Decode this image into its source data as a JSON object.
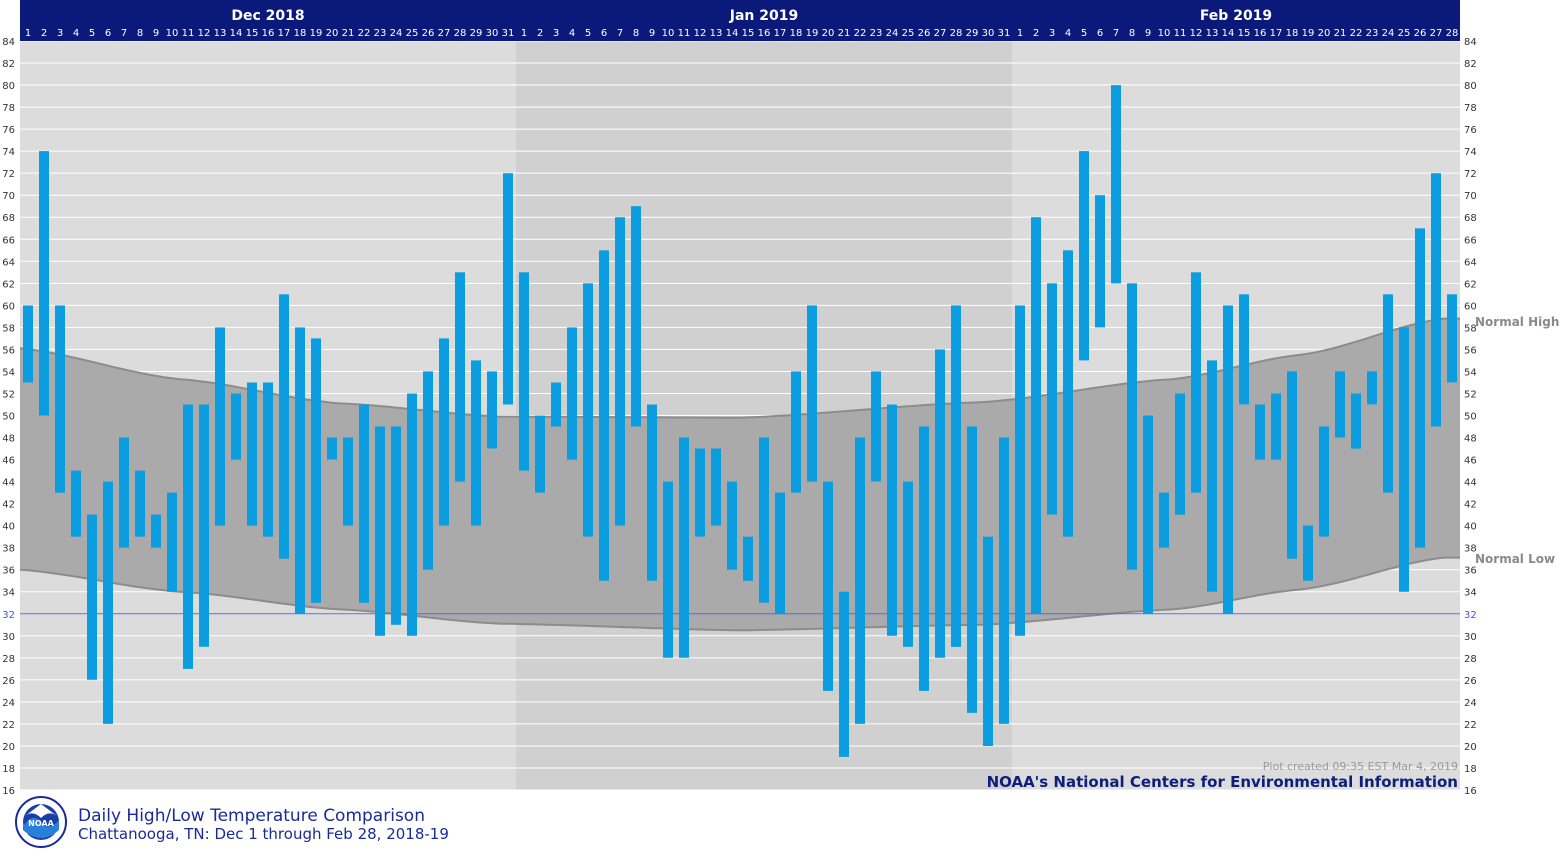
{
  "title": "Daily High/Low Temperature Comparison",
  "subtitle": "Chattanooga, TN: Dec 1 through Feb 28, 2018-19",
  "credit": "NOAA's National Centers for Environmental Information",
  "plot_created": "Plot created 09:35 EST Mar 4, 2019",
  "logo_text": "NOAA",
  "normal_high_label": "Normal High",
  "normal_low_label": "Normal Low",
  "colors": {
    "bar": "#0a9ee0",
    "normal_band": "#aaaaaa",
    "normal_edge": "#8c8c8c",
    "background_light": "#dcdcdc",
    "background_shade": "#d0d0d0",
    "header": "#0b1a7a",
    "freeze_line": "#5566ee"
  },
  "chart_data": {
    "type": "bar",
    "y_axis": {
      "min": 16,
      "max": 84,
      "step": 2
    },
    "freeze_line": 32,
    "grid": true,
    "months": [
      {
        "label": "Dec 2018",
        "days": 31
      },
      {
        "label": "Jan 2019",
        "days": 31
      },
      {
        "label": "Feb 2019",
        "days": 28
      }
    ],
    "highs": [
      60,
      74,
      60,
      45,
      41,
      44,
      48,
      45,
      41,
      43,
      51,
      51,
      58,
      52,
      53,
      53,
      61,
      58,
      57,
      48,
      48,
      51,
      49,
      49,
      52,
      54,
      57,
      63,
      55,
      54,
      72,
      63,
      50,
      53,
      58,
      62,
      65,
      68,
      69,
      51,
      44,
      48,
      47,
      47,
      44,
      39,
      48,
      43,
      54,
      60,
      44,
      34,
      48,
      54,
      51,
      44,
      49,
      56,
      60,
      49,
      39,
      48,
      60,
      68,
      62,
      65,
      74,
      70,
      80,
      62,
      50,
      43,
      52,
      63,
      55,
      60,
      61,
      51,
      52,
      54,
      40,
      49,
      54,
      52,
      54,
      61,
      58,
      67,
      72,
      61
    ],
    "lows": [
      53,
      50,
      43,
      39,
      26,
      22,
      38,
      39,
      38,
      34,
      27,
      29,
      40,
      46,
      40,
      39,
      37,
      32,
      33,
      46,
      40,
      33,
      30,
      31,
      30,
      36,
      40,
      44,
      40,
      47,
      51,
      45,
      43,
      49,
      46,
      39,
      35,
      40,
      49,
      35,
      28,
      28,
      39,
      40,
      36,
      35,
      33,
      32,
      43,
      44,
      25,
      19,
      22,
      44,
      30,
      29,
      25,
      28,
      29,
      23,
      20,
      22,
      30,
      32,
      41,
      39,
      55,
      58,
      62,
      36,
      32,
      38,
      41,
      43,
      34,
      32,
      51,
      46,
      46,
      37,
      35,
      39,
      48,
      47,
      51,
      43,
      34,
      38,
      49,
      53
    ],
    "normal_high_nodes": [
      [
        0,
        56.1
      ],
      [
        10,
        53.3
      ],
      [
        20,
        51.1
      ],
      [
        30,
        49.9
      ],
      [
        45,
        49.8
      ],
      [
        60,
        51.2
      ],
      [
        72,
        53.3
      ],
      [
        80,
        55.5
      ],
      [
        89,
        58.8
      ]
    ],
    "normal_low_nodes": [
      [
        0,
        36.0
      ],
      [
        10,
        34.0
      ],
      [
        20,
        32.4
      ],
      [
        30,
        31.1
      ],
      [
        45,
        30.5
      ],
      [
        60,
        31.0
      ],
      [
        72,
        32.4
      ],
      [
        80,
        34.2
      ],
      [
        89,
        37.1
      ]
    ]
  }
}
